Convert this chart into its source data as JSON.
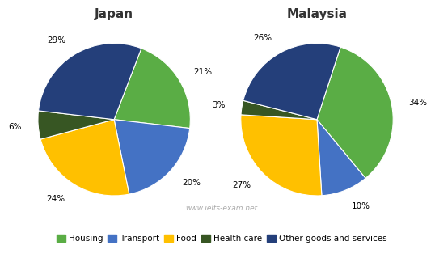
{
  "japan": {
    "title": "Japan",
    "values": [
      21,
      20,
      24,
      6,
      29
    ],
    "labels": [
      "21%",
      "20%",
      "24%",
      "6%",
      "29%"
    ],
    "startangle": 69
  },
  "malaysia": {
    "title": "Malaysia",
    "values": [
      34,
      10,
      27,
      3,
      26
    ],
    "labels": [
      "34%",
      "10%",
      "27%",
      "3%",
      "26%"
    ],
    "startangle": 72
  },
  "colors": [
    "#5aad45",
    "#4472c4",
    "#ffc000",
    "#375623",
    "#243f7a"
  ],
  "legend_labels": [
    "Housing",
    "Transport",
    "Food",
    "Health care",
    "Other goods and services"
  ],
  "watermark": "www.ielts-exam.net",
  "background_color": "#ffffff",
  "title_fontsize": 11,
  "label_fontsize": 7.5,
  "legend_fontsize": 7.5
}
